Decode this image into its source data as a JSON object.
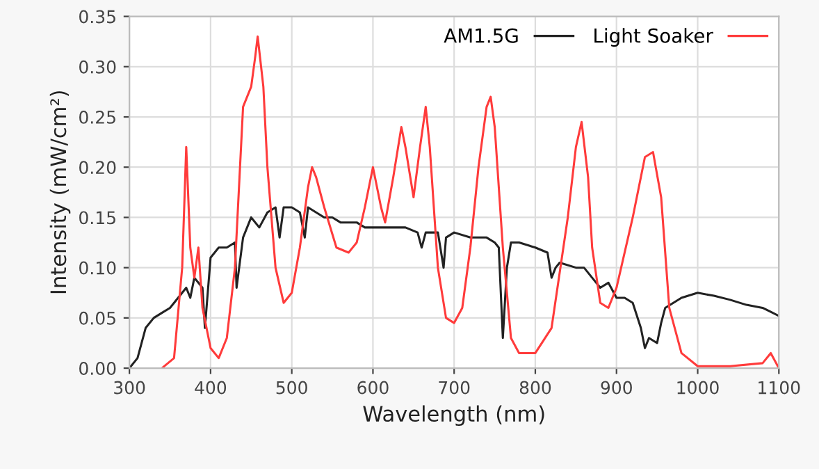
{
  "chart_data": {
    "type": "line",
    "xlabel": "Wavelength (nm)",
    "ylabel": "Intensity (mW/cm²)",
    "xlim": [
      300,
      1100
    ],
    "xticks": [
      300,
      400,
      500,
      600,
      700,
      800,
      900,
      1000,
      1100
    ],
    "ylim": [
      0,
      0.35
    ],
    "yticks": [
      {
        "value": 0,
        "label": "0.00"
      },
      {
        "value": 0.05,
        "label": "0.05"
      },
      {
        "value": 0.1,
        "label": "0.10"
      },
      {
        "value": 0.15,
        "label": "0.15"
      },
      {
        "value": 0.2,
        "label": "0.20"
      },
      {
        "value": 0.25,
        "label": "0.25"
      },
      {
        "value": 0.3,
        "label": "0.30"
      },
      {
        "value": 0.35,
        "label": "0.35"
      }
    ],
    "grid": true,
    "legend": "top right",
    "marker": "none",
    "line_style": "solid",
    "series": [
      {
        "name": "AM1.5G",
        "color": "#222222",
        "x": [
          300,
          310,
          320,
          330,
          340,
          350,
          360,
          370,
          375,
          380,
          390,
          393,
          400,
          410,
          420,
          430,
          432,
          440,
          450,
          460,
          470,
          480,
          485,
          490,
          500,
          510,
          516,
          520,
          530,
          540,
          550,
          560,
          580,
          590,
          600,
          620,
          640,
          655,
          660,
          665,
          680,
          687,
          690,
          700,
          720,
          740,
          750,
          755,
          760,
          765,
          770,
          780,
          800,
          815,
          820,
          825,
          830,
          850,
          860,
          870,
          880,
          890,
          900,
          910,
          920,
          930,
          935,
          940,
          950,
          955,
          960,
          970,
          980,
          1000,
          1020,
          1040,
          1060,
          1080,
          1090,
          1100
        ],
        "values": [
          0,
          0.01,
          0.04,
          0.05,
          0.055,
          0.06,
          0.07,
          0.08,
          0.07,
          0.09,
          0.08,
          0.04,
          0.11,
          0.12,
          0.12,
          0.125,
          0.08,
          0.13,
          0.15,
          0.14,
          0.155,
          0.16,
          0.13,
          0.16,
          0.16,
          0.155,
          0.13,
          0.16,
          0.155,
          0.15,
          0.15,
          0.145,
          0.145,
          0.14,
          0.14,
          0.14,
          0.14,
          0.135,
          0.12,
          0.135,
          0.135,
          0.1,
          0.13,
          0.135,
          0.13,
          0.13,
          0.125,
          0.12,
          0.03,
          0.1,
          0.125,
          0.125,
          0.12,
          0.115,
          0.09,
          0.1,
          0.105,
          0.1,
          0.1,
          0.09,
          0.08,
          0.085,
          0.07,
          0.07,
          0.065,
          0.04,
          0.02,
          0.03,
          0.025,
          0.045,
          0.06,
          0.065,
          0.07,
          0.075,
          0.072,
          0.068,
          0.063,
          0.06,
          0.056,
          0.052
        ]
      },
      {
        "name": "Light Soaker",
        "color": "#ff3b3b",
        "x": [
          340,
          355,
          365,
          370,
          375,
          380,
          385,
          390,
          400,
          410,
          420,
          430,
          440,
          450,
          455,
          458,
          465,
          470,
          480,
          490,
          500,
          510,
          520,
          525,
          530,
          540,
          555,
          570,
          580,
          590,
          600,
          610,
          615,
          625,
          635,
          640,
          650,
          658,
          665,
          670,
          680,
          690,
          700,
          710,
          720,
          730,
          740,
          745,
          750,
          760,
          770,
          780,
          800,
          820,
          840,
          850,
          857,
          865,
          870,
          880,
          890,
          900,
          920,
          935,
          945,
          955,
          965,
          980,
          1000,
          1040,
          1080,
          1090,
          1100
        ],
        "values": [
          0,
          0.01,
          0.1,
          0.22,
          0.12,
          0.09,
          0.12,
          0.06,
          0.02,
          0.01,
          0.03,
          0.1,
          0.26,
          0.28,
          0.31,
          0.33,
          0.28,
          0.2,
          0.1,
          0.065,
          0.075,
          0.12,
          0.18,
          0.2,
          0.19,
          0.16,
          0.12,
          0.115,
          0.125,
          0.16,
          0.2,
          0.16,
          0.145,
          0.19,
          0.24,
          0.22,
          0.17,
          0.22,
          0.26,
          0.22,
          0.1,
          0.05,
          0.045,
          0.06,
          0.12,
          0.2,
          0.26,
          0.27,
          0.24,
          0.12,
          0.03,
          0.015,
          0.015,
          0.04,
          0.15,
          0.22,
          0.245,
          0.19,
          0.12,
          0.065,
          0.06,
          0.08,
          0.15,
          0.21,
          0.215,
          0.17,
          0.06,
          0.015,
          0.002,
          0.002,
          0.005,
          0.015,
          0
        ]
      }
    ]
  }
}
